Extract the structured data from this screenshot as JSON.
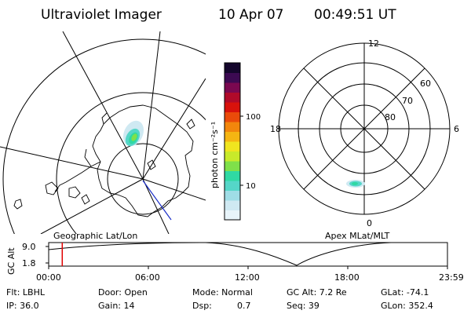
{
  "header": {
    "title": "Ultraviolet Imager",
    "date": "10 Apr 07",
    "time": "00:49:51 UT"
  },
  "left_panel": {
    "caption": "Geographic Lat/Lon"
  },
  "colorbar": {
    "unit_label": "photon cm⁻²s⁻¹",
    "tick_high": "100",
    "tick_low": "10",
    "colors": [
      "#e8f4fa",
      "#cfe9f2",
      "#9fdde6",
      "#55d6c8",
      "#2fd9a3",
      "#7fe04a",
      "#c8ea2a",
      "#f0e51f",
      "#f5b512",
      "#f2860c",
      "#ea4b0a",
      "#d8120c",
      "#b00a2a",
      "#7a0850",
      "#3c0a52",
      "#14062c"
    ]
  },
  "right_panel": {
    "caption": "Apex MLat/MLT",
    "mlt_labels": {
      "top": "12",
      "left": "18",
      "right": "6",
      "bottom": "0"
    },
    "lat_labels": [
      "60",
      "70",
      "80"
    ]
  },
  "timeline": {
    "ylabel": "GC Alt",
    "y_top": "9.0",
    "y_bottom": "1.8",
    "ticks": [
      "00:00",
      "06:00",
      "12:00",
      "18:00",
      "23:59"
    ],
    "current_fraction": 0.034
  },
  "info": {
    "flt_label": "Flt: LBHL",
    "ip_label": "IP: 36.0",
    "door_label": "Door: Open",
    "gain_label": "Gain: 14",
    "mode_label": "Mode: Normal",
    "dsp_label": "Dsp:",
    "dsp_value": "0.7",
    "gcalt_label": "GC Alt: 7.2 Re",
    "seq_label": "Seq: 39",
    "glat_label": "GLat:  -74.1",
    "glon_label": "GLon: 352.4"
  }
}
